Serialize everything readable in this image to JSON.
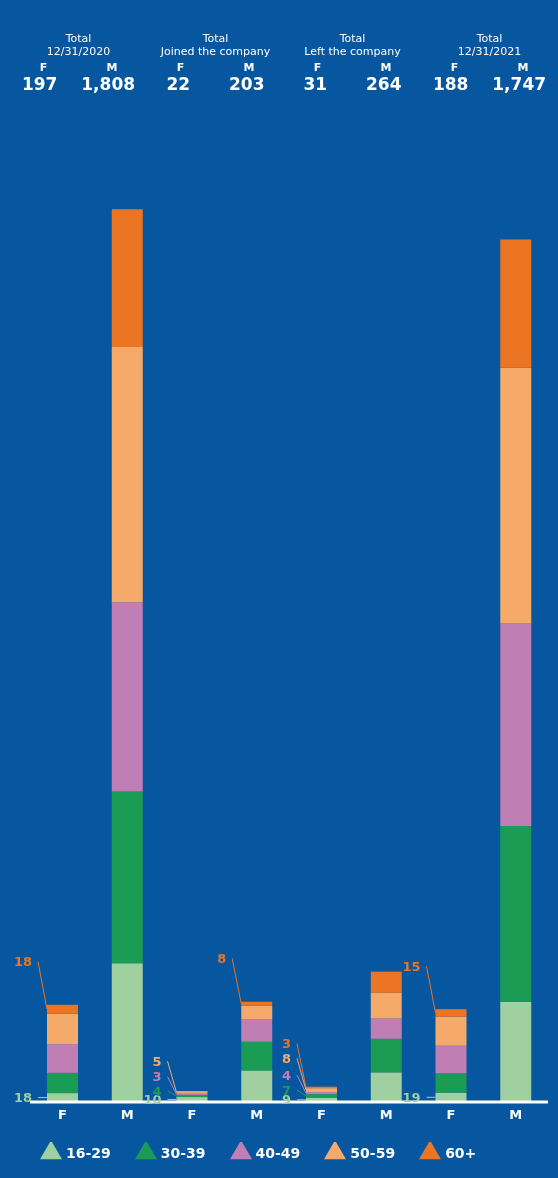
{
  "chart_data": {
    "type": "bar",
    "stacked": true,
    "categories": [
      "F",
      "M",
      "F",
      "M",
      "F",
      "M",
      "F",
      "M"
    ],
    "annotations": [
      "Total",
      "12/31/2020",
      "197",
      "1,808",
      "Total",
      "Joined the company",
      "22",
      "203",
      "Total",
      "Left the company",
      "31",
      "264",
      "Total",
      "12/31/2021",
      "188",
      "1,747"
    ],
    "series": [
      {
        "name": "16-29",
        "color": "#a0cfa0",
        "values": [
          18,
          281,
          10,
          64,
          9,
          60,
          19,
          203
        ],
        "value_labels": [
          "18",
          null,
          "10",
          null,
          "9",
          null,
          "19",
          null
        ]
      },
      {
        "name": "30-39",
        "color": "#1a9c55",
        "values": [
          41,
          348,
          4,
          58,
          7,
          68,
          39,
          356
        ],
        "value_labels": [
          null,
          null,
          "4",
          null,
          "7",
          null,
          null,
          null
        ]
      },
      {
        "name": "40-49",
        "color": "#c07fb4",
        "values": [
          58,
          383,
          3,
          45,
          4,
          41,
          56,
          410
        ],
        "value_labels": [
          null,
          null,
          "3",
          null,
          "4",
          null,
          null,
          null
        ]
      },
      {
        "name": "50-59",
        "color": "#f5aa6a",
        "values": [
          62,
          517,
          5,
          28,
          8,
          52,
          59,
          518
        ],
        "value_labels": [
          null,
          null,
          "5",
          null,
          "8",
          null,
          null,
          null
        ]
      },
      {
        "name": "60+",
        "color": "#ec7524",
        "values": [
          18,
          279,
          0,
          8,
          3,
          43,
          15,
          260
        ],
        "value_labels": [
          "18",
          null,
          null,
          "8",
          "3",
          null,
          "15",
          null
        ]
      }
    ],
    "legend": "bottom"
  }
}
